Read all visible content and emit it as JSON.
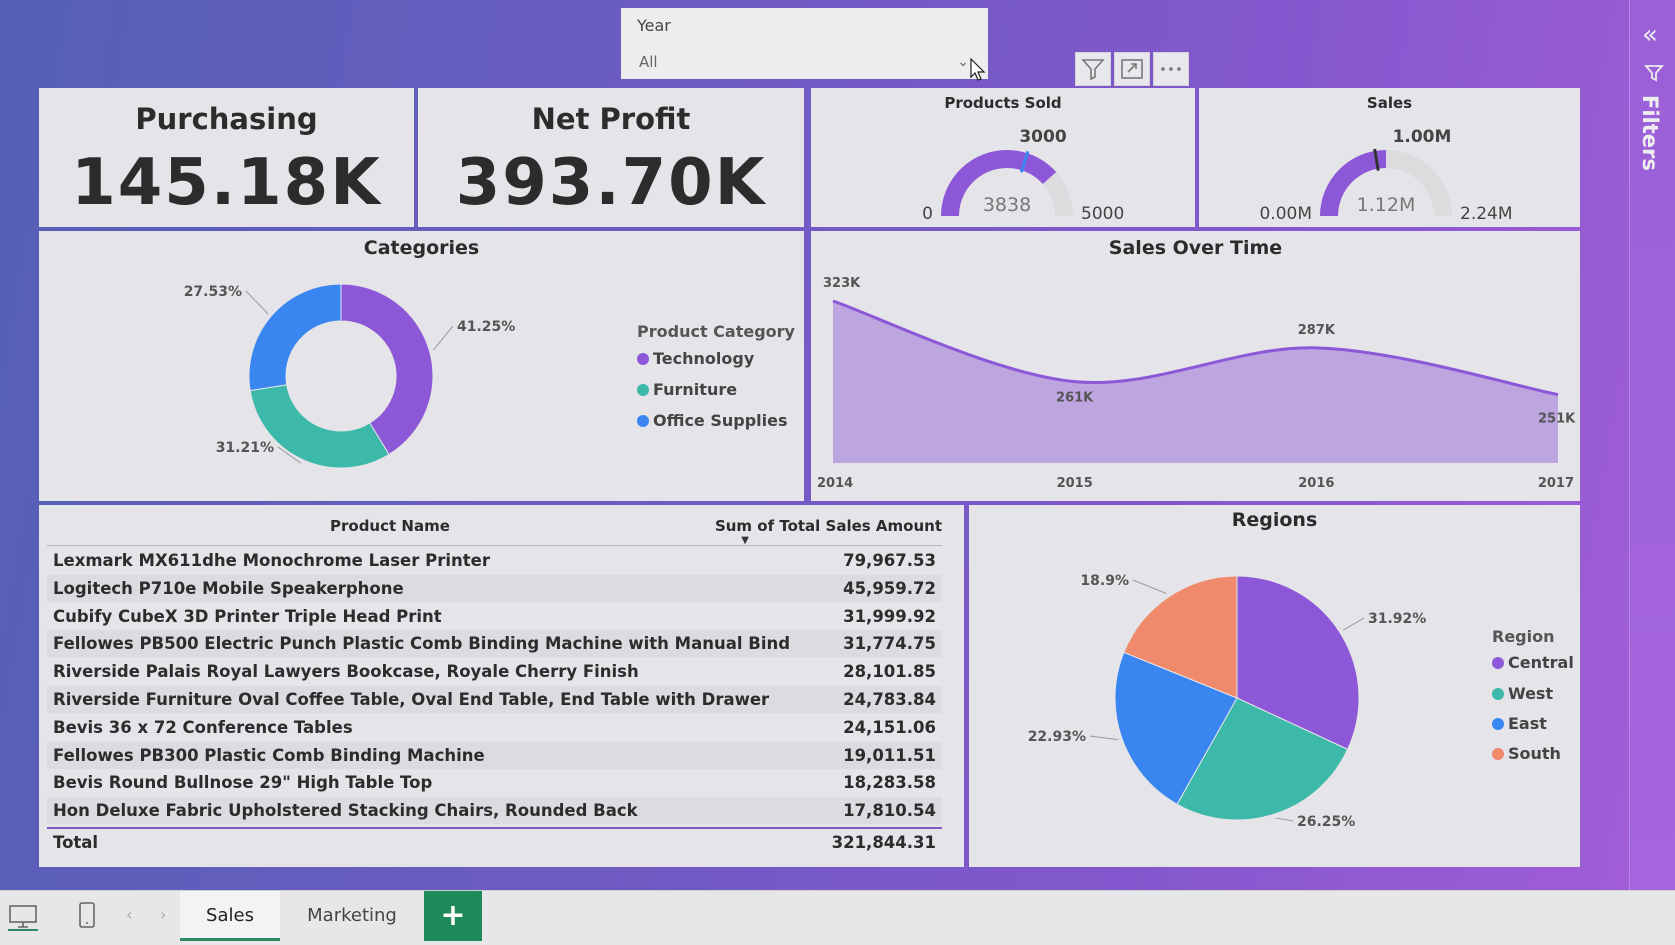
{
  "slicer": {
    "label": "Year",
    "value": "All"
  },
  "kpis": [
    {
      "title": "Purchasing",
      "value": "145.18K"
    },
    {
      "title": "Net Profit",
      "value": "393.70K"
    }
  ],
  "gauges": [
    {
      "title": "Products Sold",
      "min_label": "0",
      "max_label": "5000",
      "target_label": "3000",
      "value_label": "3838",
      "min": 0,
      "max": 5000,
      "target": 3000,
      "value": 3838,
      "color": "#8c58d8"
    },
    {
      "title": "Sales",
      "min_label": "0.00M",
      "max_label": "2.24M",
      "target_label": "1.00M",
      "value_label": "1.12M",
      "min": 0,
      "max": 2.24,
      "target": 1.0,
      "value": 1.12,
      "color": "#8c58d8"
    }
  ],
  "categories": {
    "title": "Categories",
    "legend_title": "Product Category",
    "slices": [
      {
        "name": "Technology",
        "value": 41.25,
        "label": "41.25%",
        "color": "#8c58d8"
      },
      {
        "name": "Furniture",
        "value": 31.21,
        "label": "31.21%",
        "color": "#3cb9a8"
      },
      {
        "name": "Office Supplies",
        "value": 27.53,
        "label": "27.53%",
        "color": "#3a86f0"
      }
    ]
  },
  "sales_over_time": {
    "title": "Sales Over Time",
    "x": [
      "2014",
      "2015",
      "2016",
      "2017"
    ],
    "values": [
      323,
      261,
      287,
      251
    ],
    "labels": [
      "323K",
      "261K",
      "287K",
      "251K"
    ],
    "color": "#8c58d8"
  },
  "table": {
    "headers": {
      "name": "Product Name",
      "amount": "Sum of Total Sales Amount"
    },
    "rows": [
      {
        "name": "Lexmark MX611dhe Monochrome Laser Printer",
        "amount": "79,967.53"
      },
      {
        "name": "Logitech P710e Mobile Speakerphone",
        "amount": "45,959.72"
      },
      {
        "name": "Cubify CubeX 3D Printer Triple Head Print",
        "amount": "31,999.92"
      },
      {
        "name": "Fellowes PB500 Electric Punch Plastic Comb Binding Machine with Manual Bind",
        "amount": "31,774.75"
      },
      {
        "name": "Riverside Palais Royal Lawyers Bookcase, Royale Cherry Finish",
        "amount": "28,101.85"
      },
      {
        "name": "Riverside Furniture Oval Coffee Table, Oval End Table, End Table with Drawer",
        "amount": "24,783.84"
      },
      {
        "name": "Bevis 36 x 72 Conference Tables",
        "amount": "24,151.06"
      },
      {
        "name": "Fellowes PB300 Plastic Comb Binding Machine",
        "amount": "19,011.51"
      },
      {
        "name": "Bevis Round Bullnose 29\" High Table Top",
        "amount": "18,283.58"
      },
      {
        "name": "Hon Deluxe Fabric Upholstered Stacking Chairs, Rounded Back",
        "amount": "17,810.54"
      }
    ],
    "total": {
      "label": "Total",
      "amount": "321,844.31"
    }
  },
  "regions": {
    "title": "Regions",
    "legend_title": "Region",
    "slices": [
      {
        "name": "Central",
        "value": 31.92,
        "label": "31.92%",
        "color": "#8c58d8"
      },
      {
        "name": "West",
        "value": 26.25,
        "label": "26.25%",
        "color": "#3cb9a8"
      },
      {
        "name": "East",
        "value": 22.93,
        "label": "22.93%",
        "color": "#3a86f0"
      },
      {
        "name": "South",
        "value": 18.9,
        "label": "18.9%",
        "color": "#f08a6c"
      }
    ]
  },
  "filters_pane": {
    "label": "Filters"
  },
  "tabs": [
    {
      "label": "Sales"
    },
    {
      "label": "Marketing"
    }
  ],
  "add_tab": "+"
}
